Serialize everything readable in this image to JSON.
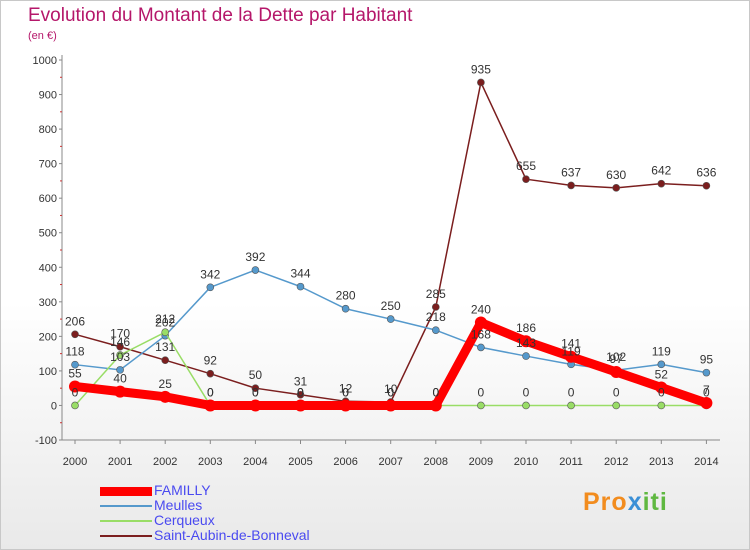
{
  "title": "Evolution du Montant de la Dette par Habitant",
  "unit": "(en €)",
  "logo": {
    "text1": "Pro",
    "text2": "x",
    "text3": "iti"
  },
  "chart_data": {
    "type": "line",
    "x": [
      "2000",
      "2001",
      "2002",
      "2003",
      "2004",
      "2005",
      "2006",
      "2007",
      "2008",
      "2009",
      "2010",
      "2011",
      "2012",
      "2013",
      "2014"
    ],
    "ylim": [
      -100,
      1000
    ],
    "yticks": [
      -100,
      0,
      100,
      200,
      300,
      400,
      500,
      600,
      700,
      800,
      900,
      1000
    ],
    "grid": false,
    "legend_position": "bottom-left",
    "series": [
      {
        "name": "FAMILLY",
        "color": "#ff0000",
        "width": 9,
        "values": [
          55,
          40,
          25,
          0,
          0,
          0,
          0,
          0,
          0,
          240,
          186,
          141,
          97,
          52,
          7
        ],
        "labels": [
          "55",
          "40",
          "25",
          "0",
          "0",
          "0",
          "0",
          "0",
          "0",
          "240",
          "186",
          "141",
          "97",
          "52",
          "7"
        ]
      },
      {
        "name": "Meulles",
        "color": "#5599cc",
        "width": 1.5,
        "values": [
          118,
          103,
          202,
          342,
          392,
          344,
          280,
          250,
          218,
          168,
          143,
          119,
          102,
          119,
          95
        ],
        "labels": [
          "118",
          "103",
          "202",
          "342",
          "392",
          "344",
          "280",
          "250",
          "218",
          "168",
          "143",
          "119",
          "102",
          "119",
          "95"
        ]
      },
      {
        "name": "Cerqueux",
        "color": "#99dd66",
        "width": 1.5,
        "values": [
          0,
          146,
          212,
          0,
          0,
          0,
          0,
          0,
          0,
          0,
          0,
          0,
          0,
          0,
          0
        ],
        "labels": [
          "0",
          "146",
          "212",
          "0",
          "0",
          "0",
          "0",
          "0",
          "0",
          "0",
          "0",
          "0",
          "0",
          "0",
          "0"
        ]
      },
      {
        "name": "Saint-Aubin-de-Bonneval",
        "color": "#7b1e1e",
        "width": 1.5,
        "values": [
          206,
          170,
          131,
          92,
          50,
          31,
          12,
          10,
          285,
          935,
          655,
          637,
          630,
          642,
          636
        ],
        "labels": [
          "206",
          "170",
          "131",
          "92",
          "50",
          "31",
          "12",
          "10",
          "285",
          "935",
          "655",
          "637",
          "630",
          "642",
          "636"
        ]
      }
    ]
  }
}
